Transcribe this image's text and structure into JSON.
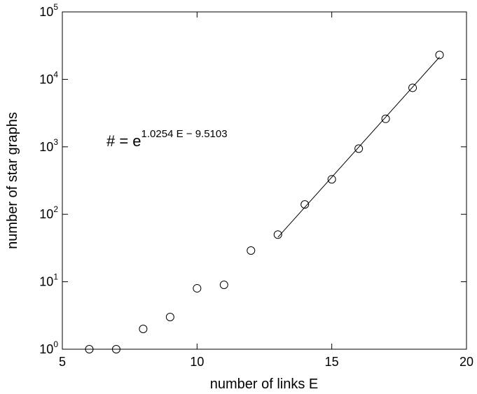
{
  "chart_data": {
    "type": "scatter",
    "title": "",
    "xlabel": "number of links E",
    "ylabel": "number of star graphs",
    "xlim": [
      5,
      20
    ],
    "ylim": [
      1,
      100000
    ],
    "yscale": "log",
    "grid": false,
    "x_ticks": [
      5,
      10,
      15,
      20
    ],
    "y_tick_exponents": [
      0,
      1,
      2,
      3,
      4,
      5
    ],
    "y_tick_base": "10",
    "points": [
      {
        "x": 6,
        "y": 1
      },
      {
        "x": 7,
        "y": 1
      },
      {
        "x": 8,
        "y": 2
      },
      {
        "x": 9,
        "y": 3
      },
      {
        "x": 10,
        "y": 8
      },
      {
        "x": 11,
        "y": 9
      },
      {
        "x": 12,
        "y": 29
      },
      {
        "x": 13,
        "y": 50
      },
      {
        "x": 14,
        "y": 140
      },
      {
        "x": 15,
        "y": 330
      },
      {
        "x": 16,
        "y": 940
      },
      {
        "x": 17,
        "y": 2600
      },
      {
        "x": 18,
        "y": 7500
      },
      {
        "x": 19,
        "y": 23000
      }
    ],
    "fit_line": {
      "x_range": [
        13,
        19
      ],
      "coef": 1.0254,
      "intercept": -9.5103
    },
    "annotation": {
      "prefix": "# = e",
      "exponent": "1.0254 E − 9.5103"
    }
  }
}
